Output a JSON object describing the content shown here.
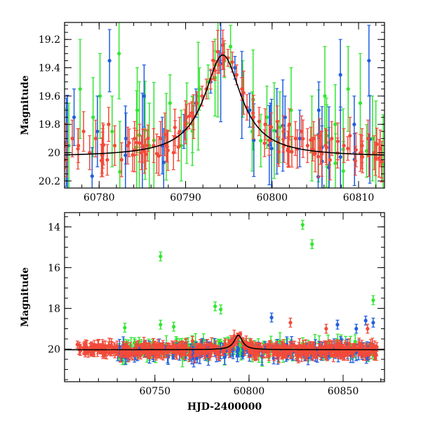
{
  "colors": {
    "green": "#32e632",
    "blue": "#1f5fe0",
    "red": "#f24a3a",
    "model": "#000000"
  },
  "chart_data": [
    {
      "type": "scatter",
      "panel": "top",
      "xlabel": "",
      "ylabel": "Magnitude",
      "xlim": [
        60776,
        60813
      ],
      "ylim": [
        20.25,
        19.08
      ],
      "y_inverted": true,
      "grid": false,
      "xticks": [
        "60780",
        "60790",
        "60800",
        "60810"
      ],
      "yticks": [
        "19.2",
        "19.4",
        "19.6",
        "19.8",
        "20",
        "20.2"
      ],
      "model": {
        "peak_x": 60794.3,
        "base_mag": 20.03,
        "peak_mag": 19.31,
        "description_points": [
          [
            60776,
            20.02
          ],
          [
            60790,
            19.8
          ],
          [
            60794.3,
            19.31
          ],
          [
            60800,
            19.79
          ],
          [
            60813,
            20.02
          ]
        ]
      },
      "series": [
        {
          "color": "green",
          "x": [
            60776.5,
            60777.8,
            60779.3,
            60780.1,
            60781.5,
            60782.3,
            60784.4,
            60785.8,
            60788.2,
            60789.5,
            60790.8,
            60791.6,
            60792.6,
            60793.4,
            60794.5,
            60795.2,
            60796.6,
            60797.7,
            60799.4,
            60800.9,
            60802.2,
            60804.6,
            60806.1,
            60807.3,
            60808.8,
            60810.2,
            60811.6
          ],
          "y": [
            19.95,
            19.55,
            19.75,
            19.6,
            19.85,
            19.3,
            19.7,
            19.95,
            19.65,
            19.95,
            19.8,
            19.55,
            19.5,
            19.38,
            19.35,
            19.25,
            19.55,
            19.85,
            19.75,
            19.82,
            19.7,
            19.9,
            19.6,
            19.8,
            19.55,
            19.65,
            19.9
          ],
          "err": [
            0.3,
            0.35,
            0.28,
            0.3,
            0.25,
            0.32,
            0.3,
            0.3,
            0.2,
            0.25,
            0.2,
            0.15,
            0.12,
            0.1,
            0.12,
            0.15,
            0.2,
            0.28,
            0.22,
            0.25,
            0.3,
            0.3,
            0.35,
            0.28,
            0.3,
            0.35,
            0.3
          ]
        },
        {
          "color": "blue",
          "x": [
            60777.1,
            60779.8,
            60781.2,
            60783.1,
            60785.2,
            60787.3,
            60789.8,
            60791.2,
            60792.9,
            60793.9,
            60795.7,
            60797.4,
            60799.8,
            60801.5,
            60803.2,
            60805.4,
            60807.9,
            60809.5,
            60811.2
          ],
          "y": [
            19.75,
            19.85,
            19.35,
            19.9,
            19.6,
            19.95,
            19.85,
            19.65,
            19.5,
            19.35,
            19.4,
            19.7,
            19.8,
            19.75,
            19.9,
            19.7,
            19.45,
            19.8,
            19.35
          ],
          "err": [
            0.2,
            0.25,
            0.22,
            0.18,
            0.22,
            0.2,
            0.12,
            0.1,
            0.08,
            0.07,
            0.08,
            0.12,
            0.15,
            0.15,
            0.2,
            0.2,
            0.25,
            0.2,
            0.25
          ]
        },
        {
          "color": "red",
          "x": [
            60776.2,
            60776.9,
            60777.6,
            60778.2,
            60778.9,
            60779.6,
            60780.4,
            60781.1,
            60781.8,
            60782.6,
            60783.3,
            60784.1,
            60784.9,
            60785.6,
            60786.3,
            60787.1,
            60787.8,
            60788.6,
            60789.3,
            60790.1,
            60790.7,
            60791.3,
            60791.9,
            60792.4,
            60792.9,
            60793.4,
            60793.9,
            60794.4,
            60794.9,
            60795.4,
            60795.9,
            60796.5,
            60797.1,
            60797.8,
            60798.5,
            60799.2,
            60799.9,
            60800.6,
            60801.3,
            60802.0,
            60802.7,
            60803.4,
            60804.1,
            60804.8,
            60805.5,
            60806.2,
            60806.9,
            60807.6,
            60808.3,
            60809.0,
            60809.7,
            60810.4,
            60811.1,
            60811.8,
            60812.5
          ],
          "y": [
            20.05,
            19.9,
            19.95,
            19.85,
            20.0,
            19.9,
            19.95,
            19.8,
            19.95,
            20.05,
            19.95,
            19.9,
            20.0,
            19.95,
            19.95,
            19.9,
            19.95,
            20.0,
            19.85,
            19.75,
            19.72,
            19.65,
            19.6,
            19.55,
            19.48,
            19.42,
            19.38,
            19.35,
            19.33,
            19.36,
            19.45,
            19.55,
            19.68,
            19.72,
            19.78,
            19.8,
            19.82,
            19.78,
            19.85,
            19.8,
            19.9,
            19.85,
            19.95,
            19.9,
            19.88,
            19.95,
            19.9,
            19.92,
            19.95,
            19.88,
            19.98,
            19.95,
            19.9,
            20.0,
            19.97
          ],
          "err": [
            0.12,
            0.13,
            0.12,
            0.14,
            0.12,
            0.13,
            0.12,
            0.12,
            0.14,
            0.12,
            0.13,
            0.12,
            0.12,
            0.11,
            0.12,
            0.12,
            0.11,
            0.12,
            0.1,
            0.09,
            0.08,
            0.08,
            0.07,
            0.07,
            0.07,
            0.07,
            0.06,
            0.06,
            0.06,
            0.07,
            0.07,
            0.08,
            0.09,
            0.1,
            0.1,
            0.11,
            0.1,
            0.11,
            0.11,
            0.11,
            0.12,
            0.11,
            0.12,
            0.12,
            0.12,
            0.12,
            0.12,
            0.13,
            0.12,
            0.13,
            0.12,
            0.12,
            0.13,
            0.12,
            0.13
          ]
        }
      ]
    },
    {
      "type": "scatter",
      "panel": "bottom",
      "xlabel": "HJD-2400000",
      "ylabel": "Magnitude",
      "xlim": [
        60702,
        60872
      ],
      "ylim": [
        21.6,
        13.3
      ],
      "y_inverted": true,
      "grid": false,
      "xticks": [
        "60750",
        "60800",
        "60850"
      ],
      "yticks": [
        "14",
        "16",
        "18",
        "20"
      ],
      "model": {
        "peak_x": 60794.3,
        "base_mag": 20.03,
        "peak_mag": 19.31
      },
      "outliers": {
        "green": [
          [
            60753,
            15.45
          ],
          [
            60828.5,
            13.9
          ],
          [
            60833.5,
            14.85
          ],
          [
            60782,
            17.9
          ],
          [
            60785,
            18.05
          ],
          [
            60866,
            17.6
          ],
          [
            60734,
            18.95
          ],
          [
            60753,
            18.8
          ],
          [
            60760,
            18.9
          ]
        ],
        "blue": [
          [
            60812,
            18.45
          ],
          [
            60847,
            18.8
          ],
          [
            60857,
            19.0
          ],
          [
            60862,
            18.6
          ],
          [
            60866,
            18.7
          ]
        ],
        "red": [
          [
            60822,
            18.7
          ],
          [
            60841,
            19.0
          ],
          [
            60770,
            19.6
          ],
          [
            60863,
            19.0
          ]
        ]
      },
      "dense_ranges": {
        "red_baseline": [
          [
            60708,
            60728,
            20.0,
            0.25
          ],
          [
            60728,
            60868,
            20.05,
            0.35
          ]
        ],
        "blue_baseline": [
          [
            60730,
            60868,
            20.1,
            0.4
          ]
        ],
        "green_baseline": [
          [
            60730,
            60868,
            20.0,
            0.5
          ]
        ]
      }
    }
  ]
}
